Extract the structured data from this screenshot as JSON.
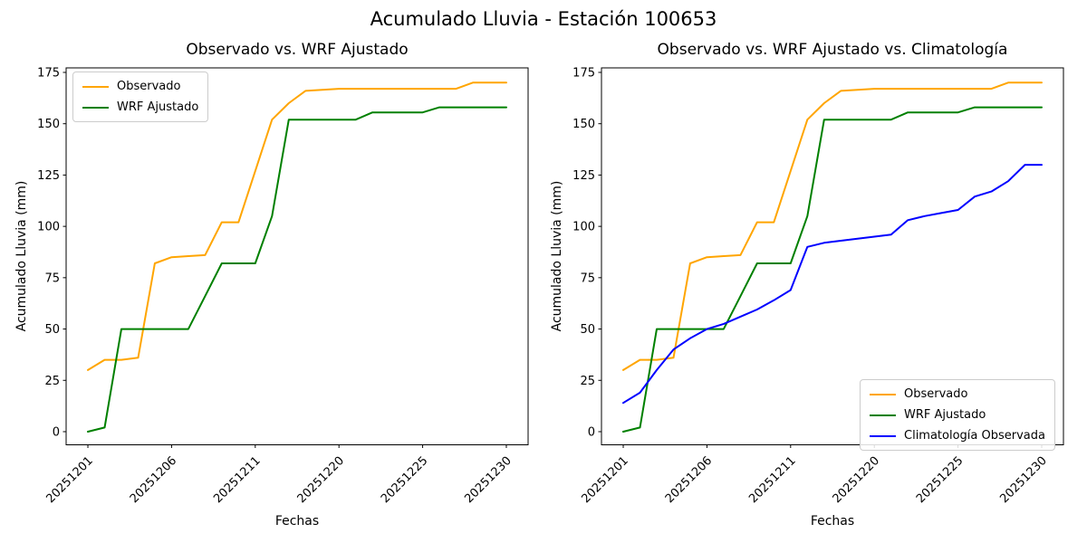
{
  "figure": {
    "suptitle": "Acumulado Lluvia - Estación 100653"
  },
  "chart_data": [
    {
      "type": "line",
      "title": "Observado vs. WRF Ajustado",
      "xlabel": "Fechas",
      "ylabel": "Acumulado Lluvia (mm)",
      "x_tick_positions": [
        0,
        5,
        10,
        15,
        20,
        25
      ],
      "x_tick_labels": [
        "20251201",
        "20251206",
        "20251211",
        "20251220",
        "20251225",
        "20251230"
      ],
      "y_ticks": [
        0,
        25,
        50,
        75,
        100,
        125,
        150,
        175
      ],
      "xlim": [
        -1.3,
        26.3
      ],
      "ylim": [
        -6.4,
        177.2
      ],
      "grid": false,
      "legend_position": "upper-left",
      "series": [
        {
          "name": "Observado",
          "color": "#FFA500",
          "values": [
            30,
            35,
            35,
            36,
            82,
            85,
            85.5,
            86,
            102,
            102,
            127,
            152,
            160,
            166,
            166.5,
            167,
            167,
            167,
            167,
            167,
            167,
            167,
            167,
            170,
            170,
            170
          ]
        },
        {
          "name": "WRF Ajustado",
          "color": "#008000",
          "values": [
            0,
            2,
            50,
            50,
            50,
            50,
            50,
            66,
            82,
            82,
            82,
            105,
            152,
            152,
            152,
            152,
            152,
            155.5,
            155.5,
            155.5,
            155.5,
            158,
            158,
            158,
            158,
            158
          ]
        }
      ]
    },
    {
      "type": "line",
      "title": "Observado vs. WRF Ajustado vs. Climatología",
      "xlabel": "Fechas",
      "ylabel": "Acumulado Lluvia (mm)",
      "x_tick_positions": [
        0,
        5,
        10,
        15,
        20,
        25
      ],
      "x_tick_labels": [
        "20251201",
        "20251206",
        "20251211",
        "20251220",
        "20251225",
        "20251230"
      ],
      "y_ticks": [
        0,
        25,
        50,
        75,
        100,
        125,
        150,
        175
      ],
      "xlim": [
        -1.3,
        26.3
      ],
      "ylim": [
        -6.4,
        177.2
      ],
      "grid": false,
      "legend_position": "lower-right",
      "series": [
        {
          "name": "Observado",
          "color": "#FFA500",
          "values": [
            30,
            35,
            35,
            36,
            82,
            85,
            85.5,
            86,
            102,
            102,
            127,
            152,
            160,
            166,
            166.5,
            167,
            167,
            167,
            167,
            167,
            167,
            167,
            167,
            170,
            170,
            170
          ]
        },
        {
          "name": "WRF Ajustado",
          "color": "#008000",
          "values": [
            0,
            2,
            50,
            50,
            50,
            50,
            50,
            66,
            82,
            82,
            82,
            105,
            152,
            152,
            152,
            152,
            152,
            155.5,
            155.5,
            155.5,
            155.5,
            158,
            158,
            158,
            158,
            158
          ]
        },
        {
          "name": "Climatología Observada",
          "color": "#0000FF",
          "values": [
            14,
            19,
            30,
            40,
            45.5,
            50,
            52.5,
            56,
            59.5,
            64,
            69,
            90,
            92,
            93,
            94,
            95,
            96,
            103,
            105,
            106.5,
            108,
            114.5,
            117,
            122,
            130,
            130
          ]
        }
      ]
    }
  ]
}
